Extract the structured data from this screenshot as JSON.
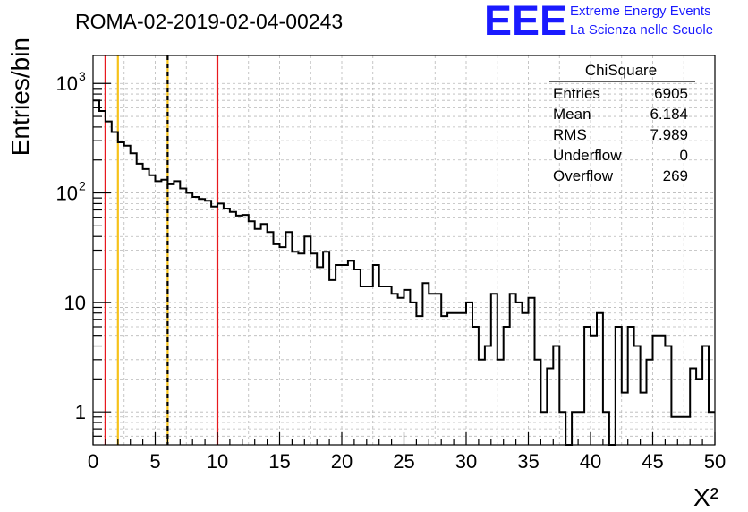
{
  "header": {
    "run_title": "ROMA-02-2019-02-04-00243",
    "logo_text": "EEE",
    "logo_line1": "Extreme Energy Events",
    "logo_line2": "La Scienza nelle Scuole"
  },
  "stats_box": {
    "title": "ChiSquare",
    "rows": [
      {
        "label": "Entries",
        "value": "6905"
      },
      {
        "label": "Mean",
        "value": "6.184"
      },
      {
        "label": "RMS",
        "value": "7.989"
      },
      {
        "label": "Underflow",
        "value": "0"
      },
      {
        "label": "Overflow",
        "value": "269"
      }
    ]
  },
  "colors": {
    "red_line": "#e8191e",
    "yellow_line": "#f6c21a",
    "black_dashed_line": "#000000",
    "histogram": "#000000",
    "grid": "#b8b8b8",
    "logo_blue": "#1a1aff"
  },
  "chart_data": {
    "type": "bar",
    "histogram_style": "step",
    "xlabel": "X²",
    "ylabel": "Entries/bin",
    "xlim": [
      0,
      50
    ],
    "ylim": [
      0.5,
      1800
    ],
    "y_scale": "log",
    "grid": true,
    "bin_width": 0.5,
    "x_ticks": [
      "0",
      "5",
      "10",
      "15",
      "20",
      "25",
      "30",
      "35",
      "40",
      "45",
      "50"
    ],
    "y_ticks": [
      {
        "value": 1,
        "base": "1",
        "exp": ""
      },
      {
        "value": 10,
        "base": "10",
        "exp": ""
      },
      {
        "value": 100,
        "base": "10",
        "exp": "2"
      },
      {
        "value": 1000,
        "base": "10",
        "exp": "3"
      }
    ],
    "vertical_lines": [
      {
        "x": 1,
        "color": "red",
        "style": "solid"
      },
      {
        "x": 2,
        "color": "yellow",
        "style": "solid"
      },
      {
        "x": 6,
        "color": "yellow",
        "style": "solid"
      },
      {
        "x": 6,
        "color": "black",
        "style": "dashed"
      },
      {
        "x": 10,
        "color": "red",
        "style": "solid"
      }
    ],
    "bin_counts": [
      700,
      560,
      450,
      360,
      290,
      270,
      230,
      185,
      165,
      145,
      128,
      132,
      120,
      128,
      110,
      100,
      92,
      88,
      85,
      75,
      80,
      72,
      67,
      62,
      63,
      55,
      47,
      52,
      44,
      34,
      32,
      44,
      29,
      28,
      40,
      28,
      21,
      29,
      16,
      22,
      22,
      24,
      20,
      14,
      14,
      22,
      14,
      14,
      12,
      11,
      13,
      10,
      7.5,
      15,
      12,
      12,
      7.5,
      8,
      8,
      8,
      10,
      6,
      3,
      4,
      12,
      3,
      6,
      12,
      10,
      8,
      11,
      3,
      1,
      2.5,
      4,
      1,
      0.3,
      1,
      1,
      6,
      5,
      8,
      1,
      0.3,
      6,
      1.5,
      6,
      4,
      1.5,
      3,
      5,
      5,
      4,
      0.9,
      0.9,
      0.9,
      2.5,
      2,
      4,
      1
    ]
  }
}
